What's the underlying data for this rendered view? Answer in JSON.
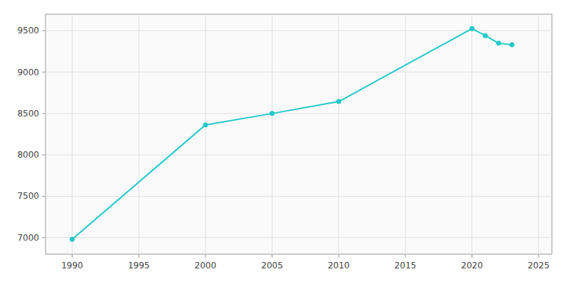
{
  "chart_data": {
    "type": "line",
    "x": [
      1990,
      2000,
      2005,
      2010,
      2020,
      2021,
      2022,
      2023
    ],
    "values": [
      6980,
      8362,
      8500,
      8644,
      9526,
      9441,
      9350,
      9330
    ],
    "color": "#22C8C8",
    "marker": "circle",
    "xlim": [
      1988,
      2026
    ],
    "ylim": [
      6800,
      9700
    ],
    "xticks": [
      1990,
      1995,
      2000,
      2005,
      2010,
      2015,
      2020,
      2025
    ],
    "yticks": [
      7000,
      7500,
      8000,
      8500,
      9000,
      9500
    ],
    "grid": true
  }
}
